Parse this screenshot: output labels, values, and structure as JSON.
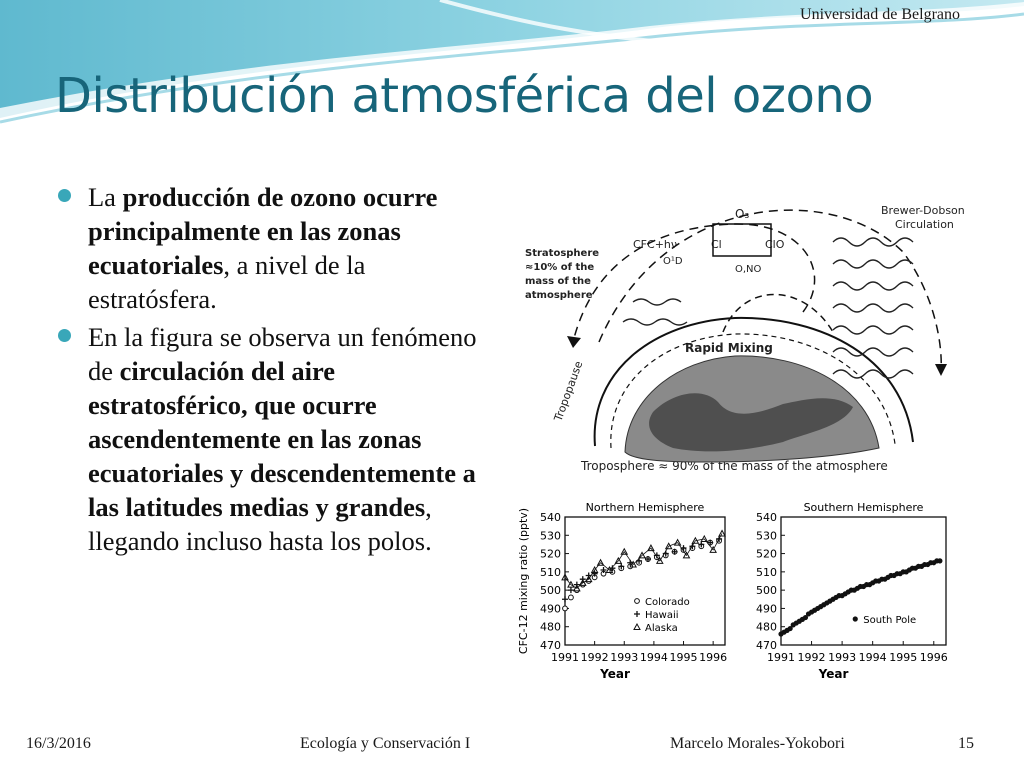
{
  "header": {
    "institution": "Universidad de Belgrano"
  },
  "title": "Distribución atmosférica del ozono",
  "bullets": [
    {
      "segments": [
        {
          "text": "La ",
          "bold": false
        },
        {
          "text": "producción de ozono ocurre principalmente en las zonas ecuatoriales",
          "bold": true
        },
        {
          "text": ", a nivel de la estratósfera.",
          "bold": false
        }
      ]
    },
    {
      "segments": [
        {
          "text": "En la figura se observa un fenómeno de ",
          "bold": false
        },
        {
          "text": "circulación del aire estratosférico, que ocurre ascendentemente en las zonas ecuatoriales y descendentemente a las latitudes medias y grandes",
          "bold": true
        },
        {
          "text": ", llegando incluso hasta los polos.",
          "bold": false
        }
      ]
    }
  ],
  "figure": {
    "labels": {
      "brewer_dobson": "Brewer-Dobson",
      "circulation": "Circulation",
      "stratosphere_lines": [
        "Stratosphere",
        "≈10% of the",
        "mass of the",
        "atmosphere"
      ],
      "o3": "O₃",
      "cfc": "CFC+hν",
      "cl": "Cl",
      "clo": "ClO",
      "o1d": "O¹D",
      "o_no": "O,NO",
      "rapid_mixing": "Rapid   Mixing",
      "tropopause": "Tropopause",
      "troposphere": "Troposphere ≈ 90% of the mass of the atmosphere"
    }
  },
  "chart_data": [
    {
      "type": "scatter",
      "title": "Northern Hemisphere",
      "ylabel": "CFC-12 mixing ratio (pptv)",
      "xlabel": "Year",
      "xlim": [
        1991,
        1996.4
      ],
      "ylim": [
        470,
        540
      ],
      "x_ticks": [
        "1991",
        "1992",
        "1993",
        "1994",
        "1995",
        "1996"
      ],
      "y_ticks": [
        "540",
        "530",
        "520",
        "510",
        "500",
        "490",
        "480",
        "470"
      ],
      "legend_position": "lower-right",
      "series": [
        {
          "name": "Colorado",
          "marker": "circle-open",
          "x": [
            1991.0,
            1991.2,
            1991.4,
            1991.6,
            1991.8,
            1992.0,
            1992.3,
            1992.6,
            1992.9,
            1993.2,
            1993.5,
            1993.8,
            1994.1,
            1994.4,
            1994.7,
            1995.0,
            1995.3,
            1995.6,
            1995.9,
            1996.2
          ],
          "values": [
            490,
            496,
            500,
            503,
            505,
            507,
            509,
            510,
            512,
            513,
            515,
            517,
            518,
            519,
            521,
            522,
            523,
            524,
            526,
            527
          ]
        },
        {
          "name": "Hawaii",
          "marker": "plus",
          "x": [
            1991.0,
            1991.2,
            1991.4,
            1991.6,
            1991.8,
            1992.0,
            1992.3,
            1992.6,
            1992.9,
            1993.2,
            1993.5,
            1993.8,
            1994.1,
            1994.4,
            1994.7,
            1995.0,
            1995.3,
            1995.6,
            1995.9,
            1996.2
          ],
          "values": [
            495,
            500,
            503,
            506,
            508,
            509,
            511,
            512,
            513,
            515,
            516,
            517,
            519,
            520,
            521,
            523,
            524,
            525,
            526,
            528
          ]
        },
        {
          "name": "Alaska",
          "marker": "triangle",
          "x": [
            1991.0,
            1991.2,
            1991.4,
            1991.6,
            1991.8,
            1992.0,
            1992.2,
            1992.5,
            1992.8,
            1993.0,
            1993.3,
            1993.6,
            1993.9,
            1994.2,
            1994.5,
            1994.8,
            1995.1,
            1995.4,
            1995.7,
            1996.0,
            1996.3
          ],
          "values": [
            507,
            503,
            501,
            504,
            506,
            511,
            515,
            511,
            516,
            521,
            514,
            519,
            523,
            516,
            524,
            526,
            519,
            527,
            528,
            522,
            531
          ]
        }
      ]
    },
    {
      "type": "scatter",
      "title": "Southern Hemisphere",
      "xlabel": "Year",
      "xlim": [
        1991,
        1996.4
      ],
      "ylim": [
        470,
        540
      ],
      "x_ticks": [
        "1991",
        "1992",
        "1993",
        "1994",
        "1995",
        "1996"
      ],
      "y_ticks": [
        "540",
        "530",
        "520",
        "510",
        "500",
        "490",
        "480",
        "470"
      ],
      "legend_position": "lower-right",
      "series": [
        {
          "name": "South Pole",
          "marker": "circle-filled",
          "x": [
            1991.0,
            1991.1,
            1991.2,
            1991.3,
            1991.4,
            1991.5,
            1991.6,
            1991.7,
            1991.8,
            1991.9,
            1992.0,
            1992.1,
            1992.2,
            1992.3,
            1992.4,
            1992.5,
            1992.6,
            1992.7,
            1992.8,
            1992.9,
            1993.0,
            1993.1,
            1993.2,
            1993.3,
            1993.4,
            1993.5,
            1993.6,
            1993.7,
            1993.8,
            1993.9,
            1994.0,
            1994.1,
            1994.2,
            1994.3,
            1994.4,
            1994.5,
            1994.6,
            1994.7,
            1994.8,
            1994.9,
            1995.0,
            1995.1,
            1995.2,
            1995.3,
            1995.4,
            1995.5,
            1995.6,
            1995.7,
            1995.8,
            1995.9,
            1996.0,
            1996.1,
            1996.2
          ],
          "values": [
            476,
            477,
            478,
            479,
            481,
            482,
            483,
            484,
            485,
            487,
            488,
            489,
            490,
            491,
            492,
            493,
            494,
            495,
            496,
            497,
            497,
            498,
            499,
            500,
            500,
            501,
            502,
            502,
            503,
            503,
            504,
            505,
            505,
            506,
            506,
            507,
            508,
            508,
            509,
            509,
            510,
            510,
            511,
            512,
            512,
            513,
            513,
            514,
            514,
            515,
            515,
            516,
            516
          ]
        }
      ]
    }
  ],
  "footer": {
    "date": "16/3/2016",
    "course": "Ecología y Conservación I",
    "author": "Marcelo Morales-Yokobori",
    "page": "15"
  }
}
